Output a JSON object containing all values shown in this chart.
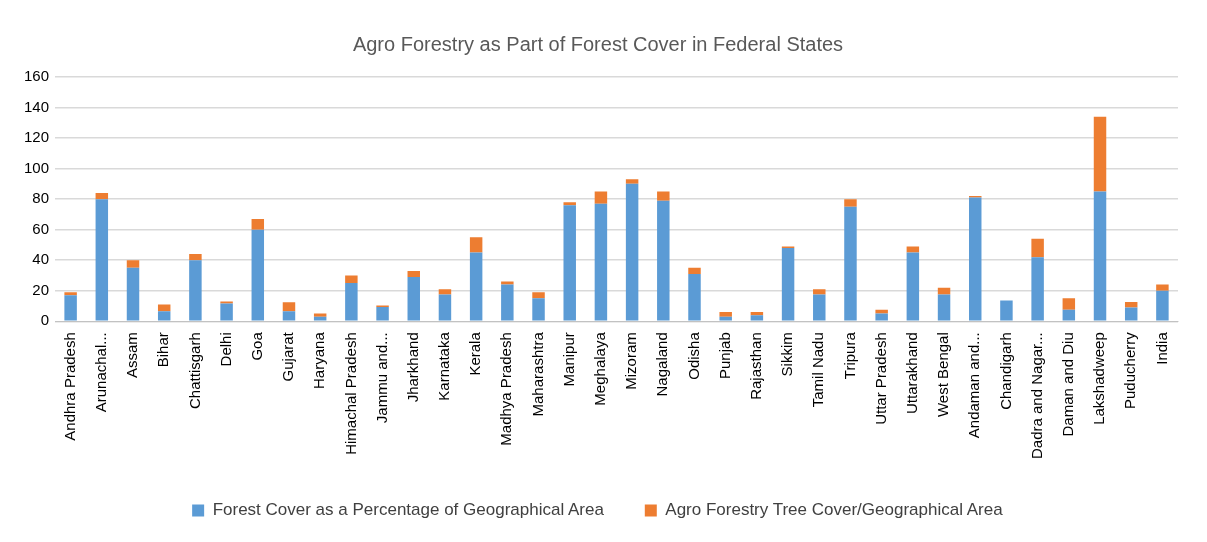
{
  "chart_data": {
    "type": "bar",
    "title": "Agro Forestry as Part of Forest Cover in Federal States",
    "stacked": true,
    "grid": "y",
    "legend": "bottom",
    "categories": [
      "Andhra Pradesh",
      "Arunachal...",
      "Assam",
      "Bihar",
      "Chattisgarh",
      "Delhi",
      "Goa",
      "Gujarat",
      "Haryana",
      "Himachal Pradesh",
      "Jammu and...",
      "Jharkhand",
      "Karnataka",
      "Kerala",
      "Madhya Pradesh",
      "Maharashtra",
      "Manipur",
      "Meghalaya",
      "Mizoram",
      "Nagaland",
      "Odisha",
      "Punjab",
      "Rajasthan",
      "Sikkim",
      "Tamil Nadu",
      "Tripura",
      "Uttar Pradesh",
      "Uttarakhand",
      "West Bengal",
      "Andaman and...",
      "Chandigarh",
      "Dadra and Nagar...",
      "Daman and Diu",
      "Lakshadweep",
      "Puducherry",
      "India"
    ],
    "series": [
      {
        "name": "Forest Cover as a Percentage of Geographical Area",
        "color": "#5b9bd5",
        "values": [
          17,
          80,
          35,
          6.5,
          40,
          11.7,
          60,
          6.5,
          3,
          25,
          9.4,
          29,
          17.5,
          45,
          24,
          15,
          76,
          77,
          90,
          79,
          31,
          3,
          4,
          48,
          17.5,
          75,
          5,
          45,
          17.5,
          81,
          13.6,
          42,
          7.5,
          85,
          9,
          20
        ]
      },
      {
        "name": "Agro Forestry Tree Cover/Geographical Area",
        "color": "#ed7d31",
        "values": [
          2,
          4,
          5,
          4.5,
          4,
          1.3,
          7,
          6,
          2,
          5,
          1,
          4,
          3.5,
          10,
          2,
          4,
          2,
          8,
          3,
          6,
          4,
          3,
          2,
          1,
          3.5,
          5,
          2.5,
          4,
          4.5,
          1,
          0,
          12,
          7.5,
          49,
          3.6,
          4
        ]
      }
    ],
    "ylim": [
      0,
      160
    ],
    "yticks": [
      0,
      20,
      40,
      60,
      80,
      100,
      120,
      140,
      160
    ]
  }
}
